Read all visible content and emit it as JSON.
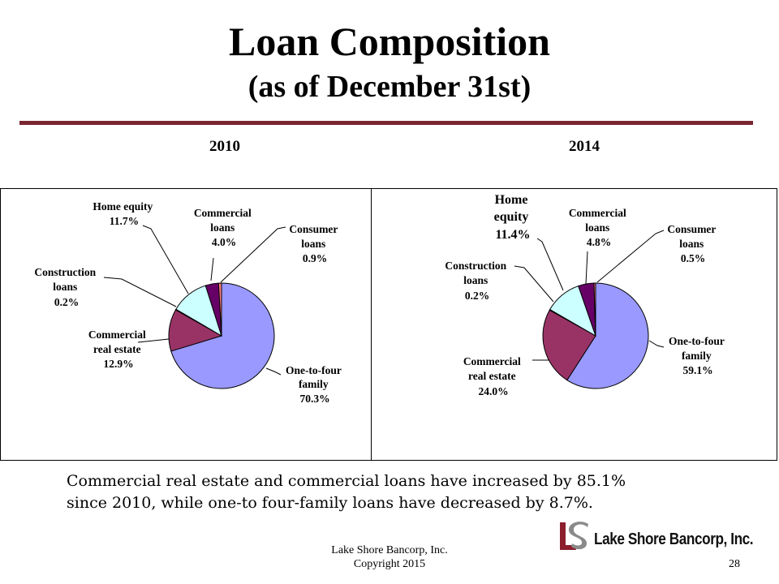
{
  "slide": {
    "title": "Loan Composition",
    "subtitle": "(as of December 31st)",
    "footnote_line1": "Commercial real estate and commercial loans have increased by 85.1%",
    "footnote_line2": "since 2010, while one-to four-family  loans have decreased by 8.7%.",
    "company": "Lake Shore Bancorp, Inc.",
    "copyright": "Copyright 2015",
    "page_number": "28",
    "logo_mark": "LS",
    "logo_text": "Lake Shore Bancorp, Inc."
  },
  "colors": {
    "rule": "#7a2632",
    "one_to_four": "#9999ff",
    "commercial_real_estate": "#993366",
    "home_equity": "#ccffff",
    "commercial_loans": "#660066",
    "consumer_loans": "#ff8080",
    "construction_loans": "#0066cc"
  },
  "chart_data": [
    {
      "type": "pie",
      "title": "2010",
      "slices": [
        {
          "label": "One-to-four family",
          "value": 70.3,
          "value_label": "70.3%"
        },
        {
          "label": "Commercial real estate",
          "value": 12.9,
          "value_label": "12.9%"
        },
        {
          "label": "Construction loans",
          "value": 0.2,
          "value_label": "0.2%"
        },
        {
          "label": "Home equity",
          "value": 11.7,
          "value_label": "11.7%"
        },
        {
          "label": "Commercial loans",
          "value": 4.0,
          "value_label": "4.0%"
        },
        {
          "label": "Consumer loans",
          "value": 0.9,
          "value_label": "0.9%"
        }
      ]
    },
    {
      "type": "pie",
      "title": "2014",
      "slices": [
        {
          "label": "One-to-four family",
          "value": 59.1,
          "value_label": "59.1%"
        },
        {
          "label": "Commercial real estate",
          "value": 24.0,
          "value_label": "24.0%"
        },
        {
          "label": "Construction loans",
          "value": 0.2,
          "value_label": "0.2%"
        },
        {
          "label": "Home equity",
          "value": 11.4,
          "value_label": "11.4%"
        },
        {
          "label": "Commercial loans",
          "value": 4.8,
          "value_label": "4.8%"
        },
        {
          "label": "Consumer loans",
          "value": 0.5,
          "value_label": "0.5%"
        }
      ]
    }
  ],
  "labels_2010": {
    "one_to_four": [
      "One-to-four",
      "family",
      "70.3%"
    ],
    "commercial_real_estate": [
      "Commercial",
      "real estate",
      "12.9%"
    ],
    "construction": [
      "Construction",
      "loans",
      "0.2%"
    ],
    "home_equity": [
      "Home  equity",
      "11.7%"
    ],
    "commercial_loans": [
      "Commercial",
      "loans",
      "4.0%"
    ],
    "consumer": [
      "Consumer",
      "loans",
      "0.9%"
    ]
  },
  "labels_2014": {
    "one_to_four": [
      "One-to-four",
      "family",
      "59.1%"
    ],
    "commercial_real_estate": [
      "Commercial",
      "real estate",
      "24.0%"
    ],
    "construction": [
      "Construction",
      "loans",
      "0.2%"
    ],
    "home_equity": [
      "Home",
      "equity",
      "11.4%"
    ],
    "commercial_loans": [
      "Commercial",
      "loans",
      "4.8%"
    ],
    "consumer": [
      "Consumer",
      "loans",
      "0.5%"
    ]
  }
}
